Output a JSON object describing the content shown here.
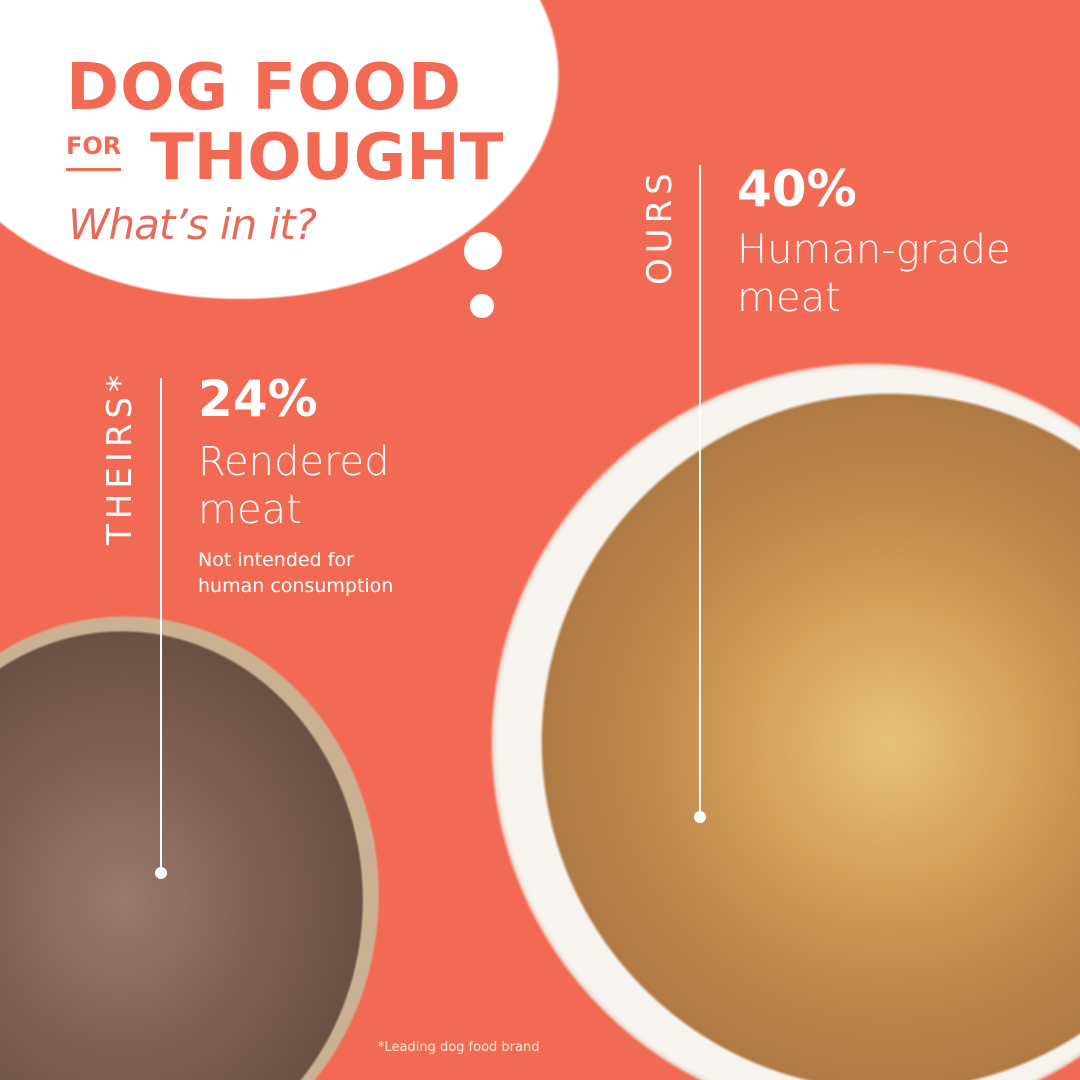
{
  "title": {
    "line1": "DOG FOOD",
    "for": "FOR",
    "line2": "THOUGHT",
    "subtitle": "What’s in it?"
  },
  "theirs": {
    "label": "THEIRS*",
    "percent": "24%",
    "description_line1": "Rendered",
    "description_line2": "meat",
    "note_line1": "Not intended for",
    "note_line2": "human consumption"
  },
  "ours": {
    "label": "OURS",
    "percent": "40%",
    "description_line1": "Human-grade",
    "description_line2": "meat"
  },
  "footnote": "*Leading dog food brand",
  "colors": {
    "background": "#f26a54",
    "text_accent": "#f26a54",
    "white": "#ffffff"
  }
}
